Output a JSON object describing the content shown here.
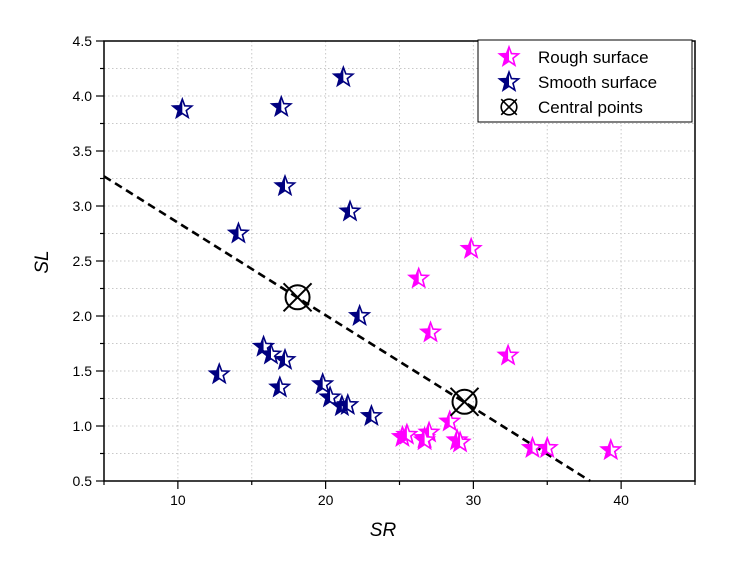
{
  "chart_data": {
    "type": "scatter",
    "xlabel": "SR",
    "ylabel": "SL",
    "xlim": [
      5,
      45
    ],
    "ylim": [
      0.5,
      4.5
    ],
    "xticks": [
      10,
      20,
      30,
      40
    ],
    "yticks": [
      0.5,
      1.0,
      1.5,
      2.0,
      2.5,
      3.0,
      3.5,
      4.0,
      4.5
    ],
    "ytick_labels": [
      "0.5",
      "1.0",
      "1.5",
      "2.0",
      "2.5",
      "3.0",
      "3.5",
      "4.0",
      "4.5"
    ],
    "grid": true,
    "legend_placement": "top-right",
    "series": [
      {
        "name": "Rough surface",
        "color": "#ff00ff",
        "marker": "star",
        "points": [
          [
            29.85,
            2.61
          ],
          [
            26.3,
            2.34
          ],
          [
            27.1,
            1.85
          ],
          [
            32.35,
            1.64
          ],
          [
            28.4,
            1.04
          ],
          [
            25.2,
            0.9
          ],
          [
            25.5,
            0.92
          ],
          [
            26.7,
            0.89
          ],
          [
            27.0,
            0.94
          ],
          [
            26.7,
            0.87
          ],
          [
            28.9,
            0.87
          ],
          [
            29.1,
            0.85
          ],
          [
            34.0,
            0.8
          ],
          [
            35.0,
            0.8
          ],
          [
            39.3,
            0.78
          ]
        ]
      },
      {
        "name": "Smooth surface",
        "color": "#000080",
        "marker": "star",
        "points": [
          [
            10.3,
            3.88
          ],
          [
            17.0,
            3.9
          ],
          [
            21.2,
            4.17
          ],
          [
            17.25,
            3.18
          ],
          [
            14.1,
            2.75
          ],
          [
            21.65,
            2.95
          ],
          [
            22.3,
            2.0
          ],
          [
            12.8,
            1.47
          ],
          [
            15.8,
            1.72
          ],
          [
            16.3,
            1.65
          ],
          [
            17.25,
            1.6
          ],
          [
            16.9,
            1.35
          ],
          [
            19.8,
            1.38
          ],
          [
            20.3,
            1.26
          ],
          [
            21.1,
            1.18
          ],
          [
            21.5,
            1.19
          ],
          [
            23.1,
            1.09
          ]
        ]
      },
      {
        "name": "Central points",
        "color": "#000000",
        "marker": "circle-x",
        "points": [
          [
            18.1,
            2.17
          ],
          [
            29.4,
            1.22
          ]
        ]
      }
    ],
    "line": {
      "style": "dashed",
      "color": "#000000",
      "points": [
        [
          5,
          3.27
        ],
        [
          37.9,
          0.5
        ]
      ]
    }
  }
}
